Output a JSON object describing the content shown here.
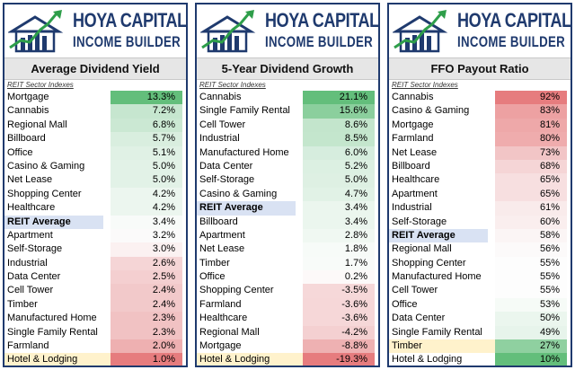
{
  "brand": {
    "line1": "HOYA CAPITAL",
    "line2": "INCOME BUILDER"
  },
  "subheader": "REIT Sector Indexes",
  "panels": [
    {
      "title": "Average Dividend Yield",
      "rows": [
        {
          "label": "Mortgage",
          "value": "13.3%",
          "color": "#63be7b"
        },
        {
          "label": "Cannabis",
          "value": "7.2%",
          "color": "#c6e6cf"
        },
        {
          "label": "Regional Mall",
          "value": "6.8%",
          "color": "#cbe8d3"
        },
        {
          "label": "Billboard",
          "value": "5.7%",
          "color": "#d9eedf"
        },
        {
          "label": "Office",
          "value": "5.1%",
          "color": "#e0f1e5"
        },
        {
          "label": "Casino & Gaming",
          "value": "5.0%",
          "color": "#e2f2e7"
        },
        {
          "label": "Net Lease",
          "value": "5.0%",
          "color": "#e2f2e7"
        },
        {
          "label": "Shopping Center",
          "value": "4.2%",
          "color": "#ecf6ef"
        },
        {
          "label": "Healthcare",
          "value": "4.2%",
          "color": "#ecf6ef"
        },
        {
          "label": "REIT Average",
          "value": "3.4%",
          "color": "#f8fbf9",
          "avg": true
        },
        {
          "label": "Apartment",
          "value": "3.2%",
          "color": "#fbfafa"
        },
        {
          "label": "Self-Storage",
          "value": "3.0%",
          "color": "#fbf1f1"
        },
        {
          "label": "Industrial",
          "value": "2.6%",
          "color": "#f5d5d6"
        },
        {
          "label": "Data Center",
          "value": "2.5%",
          "color": "#f4cfd0"
        },
        {
          "label": "Cell Tower",
          "value": "2.4%",
          "color": "#f2c9ca"
        },
        {
          "label": "Timber",
          "value": "2.4%",
          "color": "#f2c9ca"
        },
        {
          "label": "Manufactured Home",
          "value": "2.3%",
          "color": "#f1c2c3"
        },
        {
          "label": "Single Family Rental",
          "value": "2.3%",
          "color": "#f1c2c3"
        },
        {
          "label": "Farmland",
          "value": "2.0%",
          "color": "#eeb0b1"
        },
        {
          "label": "Hotel & Lodging",
          "value": "1.0%",
          "color": "#e67c7e",
          "labelbg": "#fff2cc"
        }
      ]
    },
    {
      "title": "5-Year Dividend Growth",
      "rows": [
        {
          "label": "Cannabis",
          "value": "21.1%",
          "color": "#63be7b"
        },
        {
          "label": "Single Family Rental",
          "value": "15.6%",
          "color": "#8bcf9d"
        },
        {
          "label": "Cell Tower",
          "value": "8.6%",
          "color": "#c3e5cc"
        },
        {
          "label": "Industrial",
          "value": "8.5%",
          "color": "#c4e6cd"
        },
        {
          "label": "Manufactured Home",
          "value": "6.0%",
          "color": "#d6edde"
        },
        {
          "label": "Data Center",
          "value": "5.2%",
          "color": "#dcf0e2"
        },
        {
          "label": "Self-Storage",
          "value": "5.0%",
          "color": "#def0e3"
        },
        {
          "label": "Casino & Gaming",
          "value": "4.7%",
          "color": "#e1f2e6"
        },
        {
          "label": "REIT Average",
          "value": "3.4%",
          "color": "#ebf6ee",
          "avg": true
        },
        {
          "label": "Billboard",
          "value": "3.4%",
          "color": "#ebf6ee"
        },
        {
          "label": "Apartment",
          "value": "2.8%",
          "color": "#f0f8f2"
        },
        {
          "label": "Net Lease",
          "value": "1.8%",
          "color": "#f7fbf8"
        },
        {
          "label": "Timber",
          "value": "1.7%",
          "color": "#f8fbf9"
        },
        {
          "label": "Office",
          "value": "0.2%",
          "color": "#fdf9f9"
        },
        {
          "label": "Shopping Center",
          "value": "-3.5%",
          "color": "#f6d8d9"
        },
        {
          "label": "Farmland",
          "value": "-3.6%",
          "color": "#f6d7d8"
        },
        {
          "label": "Healthcare",
          "value": "-3.6%",
          "color": "#f6d7d8"
        },
        {
          "label": "Regional Mall",
          "value": "-4.2%",
          "color": "#f4d0d1"
        },
        {
          "label": "Mortgage",
          "value": "-8.8%",
          "color": "#eeb1b2"
        },
        {
          "label": "Hotel & Lodging",
          "value": "-19.3%",
          "color": "#e67c7e",
          "labelbg": "#fff2cc"
        }
      ]
    },
    {
      "title": "FFO Payout Ratio",
      "rows": [
        {
          "label": "Cannabis",
          "value": "92%",
          "color": "#e67c7e"
        },
        {
          "label": "Casino & Gaming",
          "value": "83%",
          "color": "#eda1a2"
        },
        {
          "label": "Mortgage",
          "value": "81%",
          "color": "#eea8a9"
        },
        {
          "label": "Farmland",
          "value": "80%",
          "color": "#efacad"
        },
        {
          "label": "Net Lease",
          "value": "73%",
          "color": "#f2c5c6"
        },
        {
          "label": "Billboard",
          "value": "68%",
          "color": "#f5d5d6"
        },
        {
          "label": "Healthcare",
          "value": "65%",
          "color": "#f7dfe0"
        },
        {
          "label": "Apartment",
          "value": "65%",
          "color": "#f7dfe0"
        },
        {
          "label": "Industrial",
          "value": "61%",
          "color": "#f9ebeb"
        },
        {
          "label": "Self-Storage",
          "value": "60%",
          "color": "#faeeee"
        },
        {
          "label": "REIT Average",
          "value": "58%",
          "color": "#fbf5f5",
          "avg": true
        },
        {
          "label": "Regional Mall",
          "value": "56%",
          "color": "#fcfafa"
        },
        {
          "label": "Shopping Center",
          "value": "55%",
          "color": "#fdfdfd"
        },
        {
          "label": "Manufactured Home",
          "value": "55%",
          "color": "#fdfdfd"
        },
        {
          "label": "Cell Tower",
          "value": "55%",
          "color": "#fdfdfd"
        },
        {
          "label": "Office",
          "value": "53%",
          "color": "#f6fbf7"
        },
        {
          "label": "Data Center",
          "value": "50%",
          "color": "#ebf6ee"
        },
        {
          "label": "Single Family Rental",
          "value": "49%",
          "color": "#e7f4eb"
        },
        {
          "label": "Timber",
          "value": "27%",
          "color": "#8fd0a0",
          "labelbg": "#fff2cc"
        },
        {
          "label": "Hotel & Lodging",
          "value": "10%",
          "color": "#63be7b"
        }
      ]
    }
  ]
}
